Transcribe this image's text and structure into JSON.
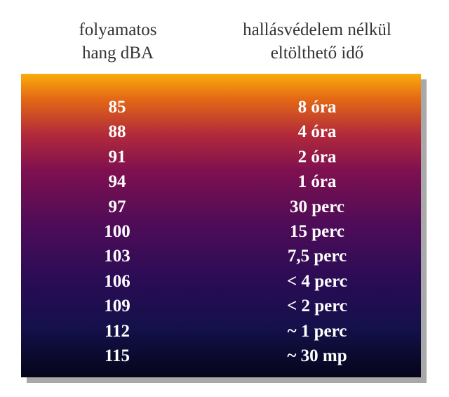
{
  "header": {
    "columns": [
      {
        "lines": [
          "folyamatos",
          "hang dBA"
        ]
      },
      {
        "lines": [
          "hallásvédelem nélkül",
          "eltölthető idő"
        ]
      }
    ]
  },
  "table": {
    "rows": [
      [
        "85",
        "8 óra"
      ],
      [
        "88",
        "4 óra"
      ],
      [
        "91",
        "2 óra"
      ],
      [
        "94",
        "1 óra"
      ],
      [
        "97",
        "30 perc"
      ],
      [
        "100",
        "15 perc"
      ],
      [
        "103",
        "7,5 perc"
      ],
      [
        "106",
        "< 4 perc"
      ],
      [
        "109",
        "< 2 perc"
      ],
      [
        "112",
        "~ 1 perc"
      ],
      [
        "115",
        "~ 30 mp"
      ]
    ]
  }
}
